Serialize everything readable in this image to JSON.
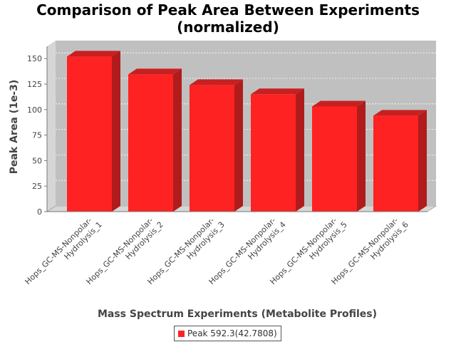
{
  "chart_data": {
    "type": "bar",
    "title_lines": [
      "Comparison of Peak Area Between Experiments",
      "(normalized)"
    ],
    "xlabel": "Mass Spectrum Experiments (Metabolite Profiles)",
    "ylabel": "Peak Area (1e-3)",
    "categories": [
      [
        "Hops_GC-MS-Nonpolar-",
        "Hydrolysis_1"
      ],
      [
        "Hops_GC-MS-Nonpolar-",
        "Hydrolysis_2"
      ],
      [
        "Hops_GC-MS-Nonpolar-",
        "Hydrolysis_3"
      ],
      [
        "Hops_GC-MS-Nonpolar-",
        "Hydrolysis_4"
      ],
      [
        "Hops_GC-MS-Nonpolar-",
        "Hydrolysis_5"
      ],
      [
        "Hops_GC-MS-Nonpolar-",
        "Hydrolysis_6"
      ]
    ],
    "series": [
      {
        "name": "Peak 592.3(42.7808)",
        "values": [
          152,
          134.5,
          124,
          115,
          103,
          94
        ]
      }
    ],
    "ylim": [
      0,
      162
    ],
    "yticks": [
      0,
      25,
      50,
      75,
      100,
      125,
      150
    ],
    "grid": true,
    "legend_position": "bottom",
    "colors": {
      "bar": "#ff2222",
      "plot_background": "#c0c0c0",
      "gridline": "#ffffff"
    }
  }
}
